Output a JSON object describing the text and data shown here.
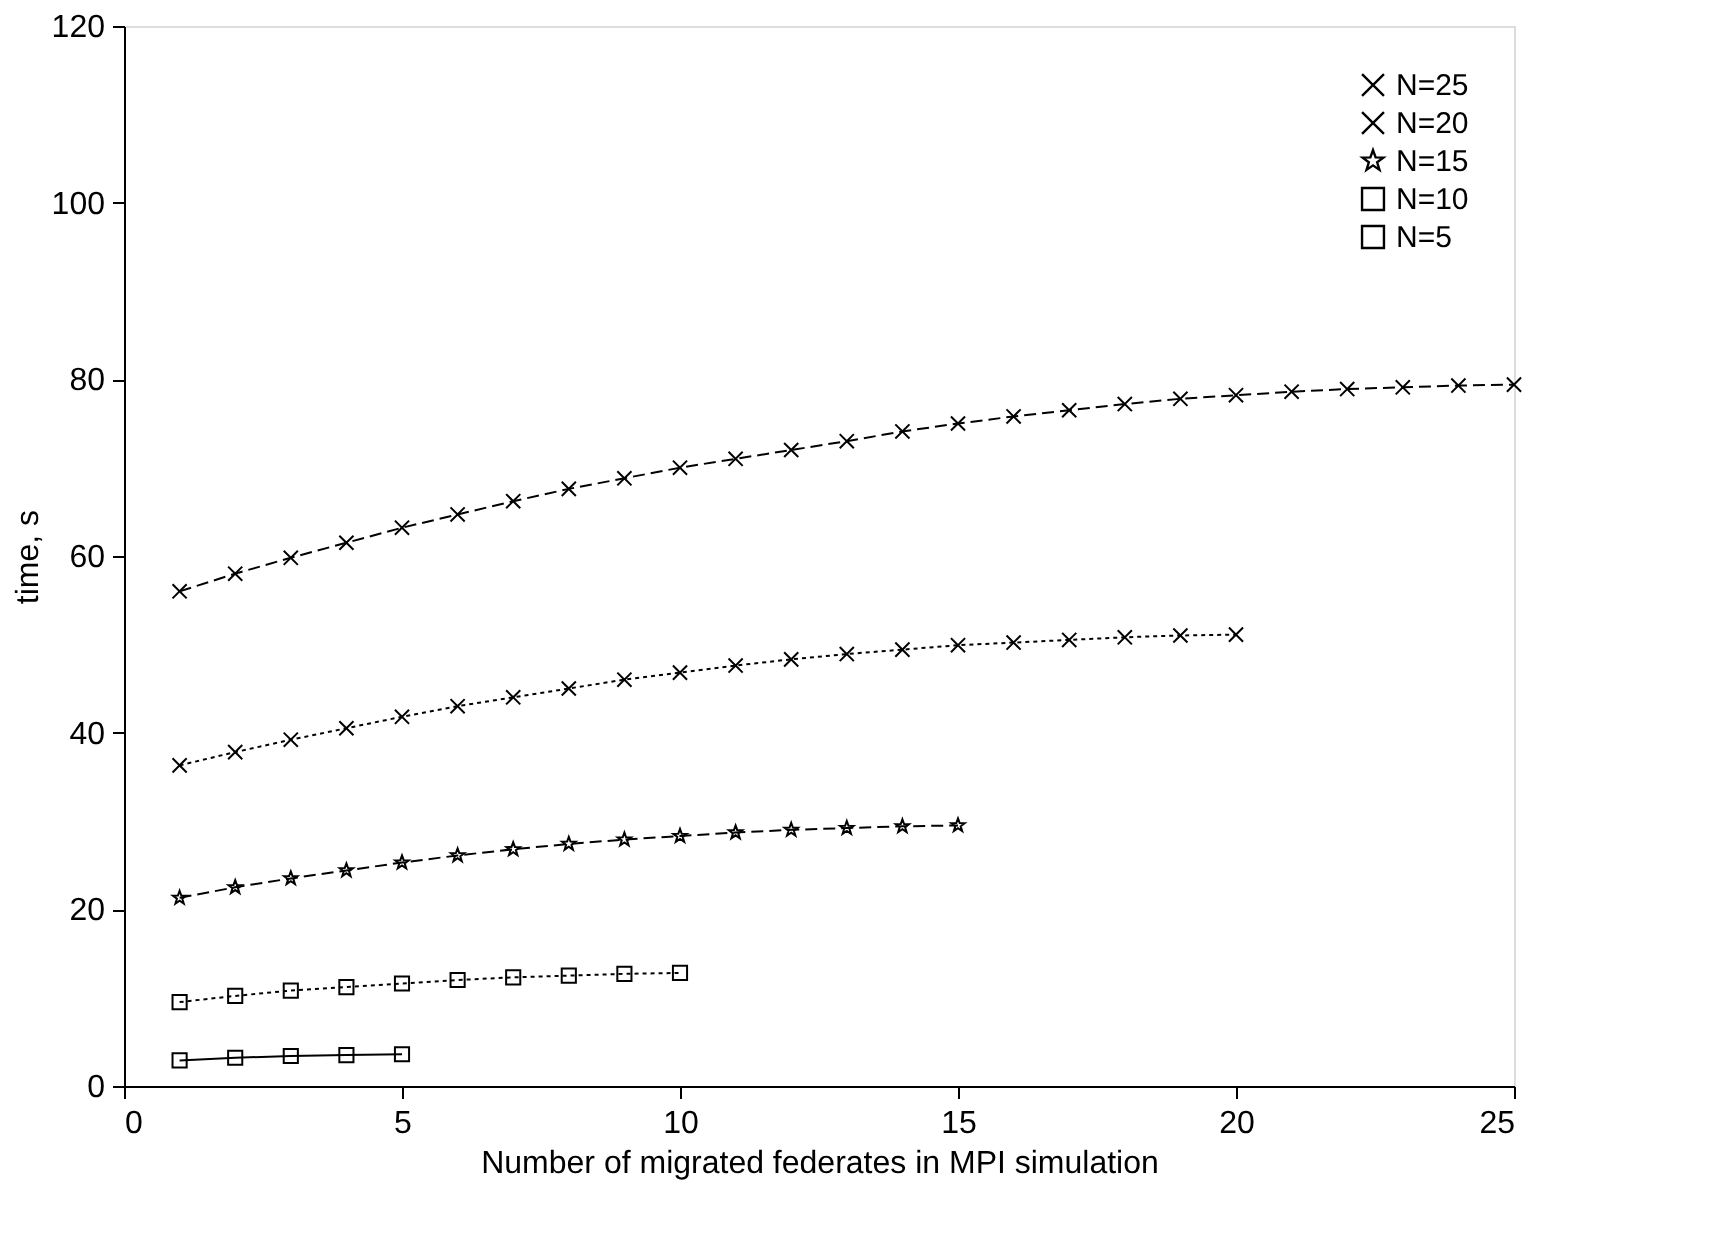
{
  "chart_data": {
    "type": "line",
    "xlabel": "Number of migrated federates in MPI simulation",
    "ylabel": "time, s",
    "xlim": [
      0,
      25
    ],
    "xticks": [
      0,
      5,
      10,
      15,
      20,
      25
    ],
    "ylim": [
      0,
      120
    ],
    "yticks": [
      0,
      20,
      40,
      60,
      80,
      100,
      120
    ],
    "grid": false,
    "legend": "top right",
    "series": [
      {
        "name": "N=25",
        "color": "#000000",
        "marker": "cross",
        "line_style": "dashed",
        "x": [
          1,
          2,
          3,
          4,
          5,
          6,
          7,
          8,
          9,
          10,
          11,
          12,
          13,
          14,
          15,
          16,
          17,
          18,
          19,
          20,
          21,
          22,
          23,
          24,
          25
        ],
        "values": [
          56,
          58,
          59.8,
          61.5,
          63.2,
          64.7,
          66.2,
          67.6,
          68.8,
          70,
          71,
          72,
          73,
          74.1,
          75,
          75.8,
          76.5,
          77.2,
          77.8,
          78.2,
          78.6,
          78.9,
          79.1,
          79.3,
          79.4
        ]
      },
      {
        "name": "N=20",
        "color": "#000000",
        "marker": "cross",
        "line_style": "dotted",
        "x": [
          1,
          2,
          3,
          4,
          5,
          6,
          7,
          8,
          9,
          10,
          11,
          12,
          13,
          14,
          15,
          16,
          17,
          18,
          19,
          20
        ],
        "values": [
          36.3,
          37.8,
          39.2,
          40.5,
          41.8,
          43,
          44,
          45,
          46,
          46.8,
          47.6,
          48.3,
          48.9,
          49.4,
          49.9,
          50.2,
          50.5,
          50.8,
          51,
          51.1
        ]
      },
      {
        "name": "N=15",
        "color": "#000000",
        "marker": "star",
        "line_style": "dashed",
        "x": [
          1,
          2,
          3,
          4,
          5,
          6,
          7,
          8,
          9,
          10,
          11,
          12,
          13,
          14,
          15
        ],
        "values": [
          21.3,
          22.5,
          23.5,
          24.4,
          25.3,
          26.1,
          26.8,
          27.4,
          27.9,
          28.3,
          28.7,
          29,
          29.2,
          29.4,
          29.5
        ]
      },
      {
        "name": "N=10",
        "color": "#000000",
        "marker": "square",
        "line_style": "dotted",
        "x": [
          1,
          2,
          3,
          4,
          5,
          6,
          7,
          8,
          9,
          10
        ],
        "values": [
          9.5,
          10.2,
          10.8,
          11.2,
          11.6,
          12,
          12.3,
          12.5,
          12.7,
          12.8
        ]
      },
      {
        "name": "N=5",
        "color": "#000000",
        "marker": "square",
        "line_style": "solid",
        "x": [
          1,
          2,
          3,
          4,
          5
        ],
        "values": [
          2.9,
          3.2,
          3.4,
          3.5,
          3.6
        ]
      }
    ]
  }
}
